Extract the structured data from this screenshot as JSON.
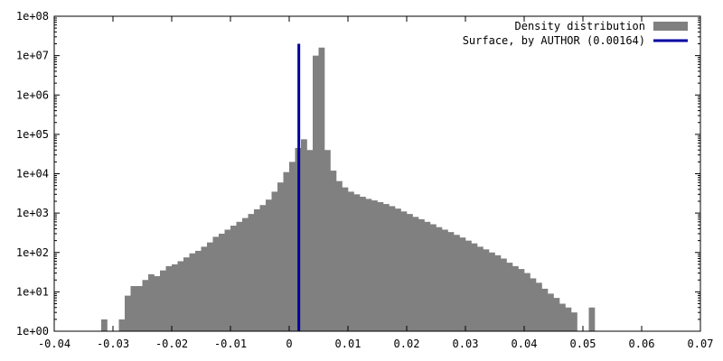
{
  "chart_data": {
    "type": "bar",
    "title": "",
    "xlabel": "",
    "ylabel": "",
    "yscale": "log",
    "xlim": [
      -0.04,
      0.07
    ],
    "ylim": [
      1,
      100000000
    ],
    "bin_width": 0.001,
    "grid": false,
    "legend_position": "top-right",
    "x_ticks": [
      "-0.04",
      "-0.03",
      "-0.02",
      "-0.01",
      "0",
      "0.01",
      "0.02",
      "0.03",
      "0.04",
      "0.05",
      "0.06",
      "0.07"
    ],
    "y_ticks": [
      "1e+00",
      "1e+01",
      "1e+02",
      "1e+03",
      "1e+04",
      "1e+05",
      "1e+06",
      "1e+07",
      "1e+08"
    ],
    "series": [
      {
        "name": "Density distribution",
        "color": "#808080",
        "bins": [
          [
            -0.0315,
            2
          ],
          [
            -0.0285,
            2
          ],
          [
            -0.0275,
            8
          ],
          [
            -0.0265,
            14
          ],
          [
            -0.0255,
            14
          ],
          [
            -0.0245,
            20
          ],
          [
            -0.0235,
            28
          ],
          [
            -0.0225,
            25
          ],
          [
            -0.0215,
            35
          ],
          [
            -0.0205,
            45
          ],
          [
            -0.0195,
            50
          ],
          [
            -0.0185,
            60
          ],
          [
            -0.0175,
            75
          ],
          [
            -0.0165,
            95
          ],
          [
            -0.0155,
            110
          ],
          [
            -0.0145,
            140
          ],
          [
            -0.0135,
            180
          ],
          [
            -0.0125,
            250
          ],
          [
            -0.0115,
            300
          ],
          [
            -0.0105,
            380
          ],
          [
            -0.0095,
            480
          ],
          [
            -0.0085,
            600
          ],
          [
            -0.0075,
            750
          ],
          [
            -0.0065,
            950
          ],
          [
            -0.0055,
            1250
          ],
          [
            -0.0045,
            1600
          ],
          [
            -0.0035,
            2200
          ],
          [
            -0.0025,
            3500
          ],
          [
            -0.0015,
            6000
          ],
          [
            -0.0005,
            11000
          ],
          [
            0.0005,
            20000
          ],
          [
            0.0015,
            45000
          ],
          [
            0.0025,
            75000
          ],
          [
            0.0035,
            40000
          ],
          [
            0.0045,
            10000000
          ],
          [
            0.0055,
            16000000
          ],
          [
            0.0065,
            40000
          ],
          [
            0.0075,
            12000
          ],
          [
            0.0085,
            6500
          ],
          [
            0.0095,
            4500
          ],
          [
            0.0105,
            3500
          ],
          [
            0.0115,
            3000
          ],
          [
            0.0125,
            2600
          ],
          [
            0.0135,
            2300
          ],
          [
            0.0145,
            2100
          ],
          [
            0.0155,
            1900
          ],
          [
            0.0165,
            1700
          ],
          [
            0.0175,
            1500
          ],
          [
            0.0185,
            1300
          ],
          [
            0.0195,
            1100
          ],
          [
            0.0205,
            950
          ],
          [
            0.0215,
            800
          ],
          [
            0.0225,
            700
          ],
          [
            0.0235,
            600
          ],
          [
            0.0245,
            520
          ],
          [
            0.0255,
            440
          ],
          [
            0.0265,
            380
          ],
          [
            0.0275,
            330
          ],
          [
            0.0285,
            280
          ],
          [
            0.0295,
            240
          ],
          [
            0.0305,
            200
          ],
          [
            0.0315,
            170
          ],
          [
            0.0325,
            140
          ],
          [
            0.0335,
            120
          ],
          [
            0.0345,
            100
          ],
          [
            0.0355,
            85
          ],
          [
            0.0365,
            70
          ],
          [
            0.0375,
            55
          ],
          [
            0.0385,
            45
          ],
          [
            0.0395,
            38
          ],
          [
            0.0405,
            30
          ],
          [
            0.0415,
            22
          ],
          [
            0.0425,
            17
          ],
          [
            0.0435,
            12
          ],
          [
            0.0445,
            9
          ],
          [
            0.0455,
            7
          ],
          [
            0.0465,
            5
          ],
          [
            0.0475,
            4
          ],
          [
            0.0485,
            3
          ],
          [
            0.0515,
            4
          ]
        ]
      },
      {
        "name": "Surface, by AUTHOR (0.00164)",
        "color": "#0000a0",
        "type": "vline",
        "x": 0.00164,
        "y_top": 20000000
      }
    ]
  }
}
